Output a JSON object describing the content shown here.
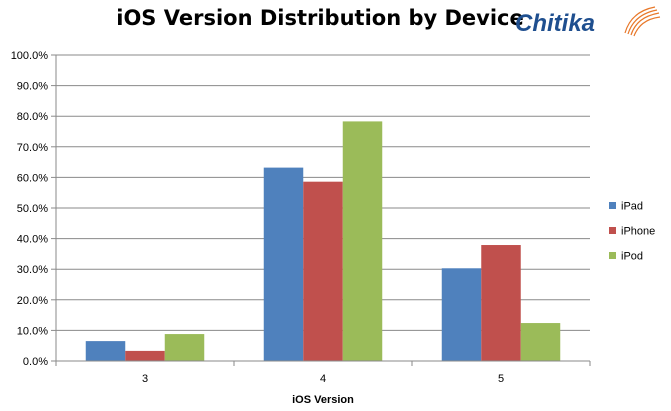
{
  "logo": {
    "text": "Chitika",
    "text_color": "#1f4f8f",
    "swoosh_color": "#e8782a"
  },
  "chart_data": {
    "type": "bar",
    "title": "iOS Version Distribution by Device",
    "xlabel": "iOS Version",
    "ylabel": "",
    "categories": [
      "3",
      "4",
      "5"
    ],
    "series": [
      {
        "name": "iPad",
        "color": "#4f81bd",
        "values": [
          6.5,
          63.2,
          30.3
        ]
      },
      {
        "name": "iPhone",
        "color": "#c0504d",
        "values": [
          3.3,
          58.6,
          37.9
        ]
      },
      {
        "name": "iPod",
        "color": "#9bbb59",
        "values": [
          8.8,
          78.3,
          12.4
        ]
      }
    ],
    "ylim": [
      0,
      100
    ],
    "yticks": [
      "0.0%",
      "10.0%",
      "20.0%",
      "30.0%",
      "40.0%",
      "50.0%",
      "60.0%",
      "70.0%",
      "80.0%",
      "90.0%",
      "100.0%"
    ],
    "grid": true,
    "legend_position": "right"
  }
}
